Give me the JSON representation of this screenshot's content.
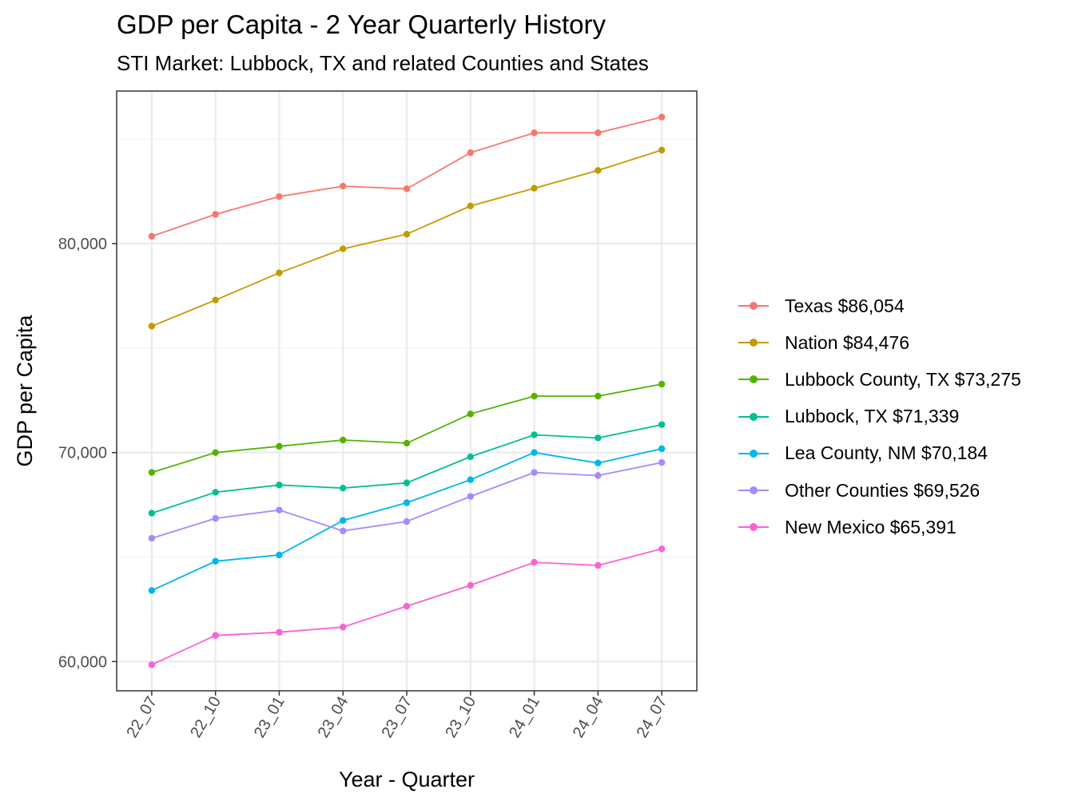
{
  "chart_data": {
    "type": "line",
    "title": "GDP per Capita - 2 Year Quarterly History",
    "subtitle": "STI Market: Lubbock, TX and related Counties and States",
    "xlabel": "Year - Quarter",
    "ylabel": "GDP per Capita",
    "categories": [
      "22_07",
      "22_10",
      "23_01",
      "23_04",
      "23_07",
      "23_10",
      "24_01",
      "24_04",
      "24_07"
    ],
    "ylim": [
      58600,
      87300
    ],
    "yticks": [
      60000,
      70000,
      80000
    ],
    "ytick_labels": [
      "60,000",
      "70,000",
      "80,000"
    ],
    "grid": true,
    "legend_position": "right",
    "series": [
      {
        "name": "Texas $86,054",
        "color": "#F8766D",
        "values": [
          80350,
          81400,
          82250,
          82750,
          82620,
          84350,
          85300,
          85300,
          86054
        ]
      },
      {
        "name": "Nation $84,476",
        "color": "#C49A00",
        "values": [
          76050,
          77300,
          78600,
          79750,
          80450,
          81800,
          82650,
          83500,
          84476
        ]
      },
      {
        "name": "Lubbock County, TX $73,275",
        "color": "#53B400",
        "values": [
          69050,
          70000,
          70300,
          70600,
          70450,
          71850,
          72700,
          72700,
          73275
        ]
      },
      {
        "name": "Lubbock, TX $71,339",
        "color": "#00C094",
        "values": [
          67100,
          68100,
          68450,
          68300,
          68550,
          69800,
          70850,
          70700,
          71339
        ]
      },
      {
        "name": "Lea County, NM $70,184",
        "color": "#00B6EB",
        "values": [
          63400,
          64800,
          65100,
          66750,
          67600,
          68700,
          70000,
          69500,
          70184
        ]
      },
      {
        "name": "Other Counties $69,526",
        "color": "#A58AFF",
        "values": [
          65900,
          66850,
          67250,
          66250,
          66700,
          67900,
          69050,
          68900,
          69526
        ]
      },
      {
        "name": "New Mexico $65,391",
        "color": "#FB61D7",
        "values": [
          59850,
          61250,
          61400,
          61650,
          62650,
          63650,
          64750,
          64600,
          65391
        ]
      }
    ]
  }
}
